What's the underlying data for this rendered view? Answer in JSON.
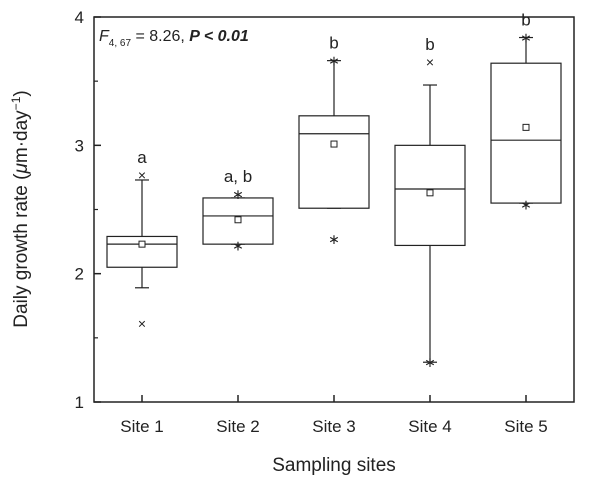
{
  "chart_data": {
    "type": "box",
    "title": "",
    "stat_text": {
      "f_symbol": "F",
      "f_subscript": "4, 67",
      "f_value": " = 8.26, ",
      "p_text": "P < 0.01"
    },
    "xlabel": "Sampling sites",
    "ylabel": {
      "prefix": "Daily  growth rate (",
      "mu": "μ",
      "unit": "m·day",
      "exponent": "−1",
      "suffix": ")"
    },
    "ylim": [
      1,
      4
    ],
    "yticks": [
      "1",
      "2",
      "3",
      "4"
    ],
    "categories": [
      "Site 1",
      "Site 2",
      "Site 3",
      "Site 4",
      "Site 5"
    ],
    "boxes": [
      {
        "q1": 2.05,
        "median": 2.23,
        "q3": 2.29,
        "mean": 2.23,
        "whisker_low": 1.89,
        "whisker_high": 2.73,
        "outliers": [
          {
            "y": 1.61,
            "symbol": "×"
          },
          {
            "y": 2.77,
            "symbol": "×"
          }
        ],
        "letter": "a"
      },
      {
        "q1": 2.23,
        "median": 2.45,
        "q3": 2.59,
        "mean": 2.42,
        "whisker_low": 2.23,
        "whisker_high": 2.59,
        "outliers": [
          {
            "y": 2.22,
            "symbol": "∗"
          },
          {
            "y": 2.62,
            "symbol": "∗"
          }
        ],
        "letter": "a, b"
      },
      {
        "q1": 2.51,
        "median": 3.09,
        "q3": 3.23,
        "mean": 3.01,
        "whisker_low": 2.51,
        "whisker_high": 3.66,
        "outliers": [
          {
            "y": 2.27,
            "symbol": "∗"
          },
          {
            "y": 3.66,
            "symbol": "∗"
          }
        ],
        "letter": "b"
      },
      {
        "q1": 2.22,
        "median": 2.66,
        "q3": 3.0,
        "mean": 2.63,
        "whisker_low": 1.31,
        "whisker_high": 3.47,
        "outliers": [
          {
            "y": 1.31,
            "symbol": "∗"
          },
          {
            "y": 3.65,
            "symbol": "×"
          }
        ],
        "letter": "b"
      },
      {
        "q1": 2.55,
        "median": 3.04,
        "q3": 3.64,
        "mean": 3.14,
        "whisker_low": 2.55,
        "whisker_high": 3.84,
        "outliers": [
          {
            "y": 2.54,
            "symbol": "∗"
          },
          {
            "y": 3.84,
            "symbol": "∗"
          }
        ],
        "letter": "b"
      }
    ],
    "grid": false,
    "colors": {
      "line": "#222222",
      "background": "#ffffff"
    }
  }
}
